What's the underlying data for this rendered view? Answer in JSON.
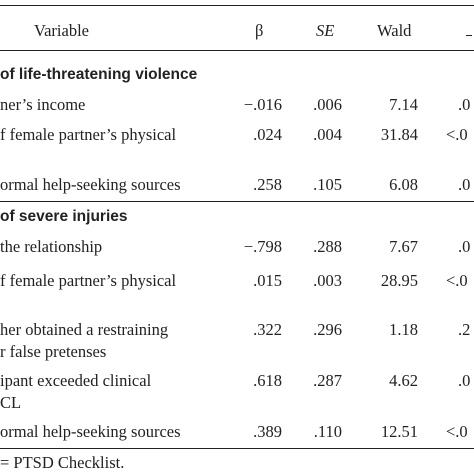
{
  "header": {
    "variable": "Variable",
    "beta": "β",
    "se": "SE",
    "wald": "Wald",
    "p_partial": ""
  },
  "sections": [
    {
      "title": "of life-threatening violence",
      "rows": [
        {
          "label": [
            "ner’s income"
          ],
          "beta": "−.016",
          "se": ".006",
          "wald": "7.14",
          "p": ".0"
        },
        {
          "label": [
            "f female partner’s physical"
          ],
          "beta": ".024",
          "se": ".004",
          "wald": "31.84",
          "p": "<.0"
        },
        {
          "label": [
            "ormal help-seeking sources"
          ],
          "beta": ".258",
          "se": ".105",
          "wald": "6.08",
          "p": ".0"
        }
      ]
    },
    {
      "title": "of severe injuries",
      "rows": [
        {
          "label": [
            "the relationship"
          ],
          "beta": "−.798",
          "se": ".288",
          "wald": "7.67",
          "p": ".0"
        },
        {
          "label": [
            "f female partner’s physical"
          ],
          "beta": ".015",
          "se": ".003",
          "wald": "28.95",
          "p": "<.0"
        },
        {
          "label": [
            "her obtained a restraining",
            "r false pretenses"
          ],
          "beta": ".322",
          "se": ".296",
          "wald": "1.18",
          "p": ".2"
        },
        {
          "label": [
            "ipant exceeded clinical",
            "CL"
          ],
          "beta": ".618",
          "se": ".287",
          "wald": "4.62",
          "p": ".0"
        },
        {
          "label": [
            "ormal help-seeking sources"
          ],
          "beta": ".389",
          "se": ".110",
          "wald": "12.51",
          "p": "<.0"
        }
      ]
    }
  ],
  "footnote": "= PTSD Checklist."
}
